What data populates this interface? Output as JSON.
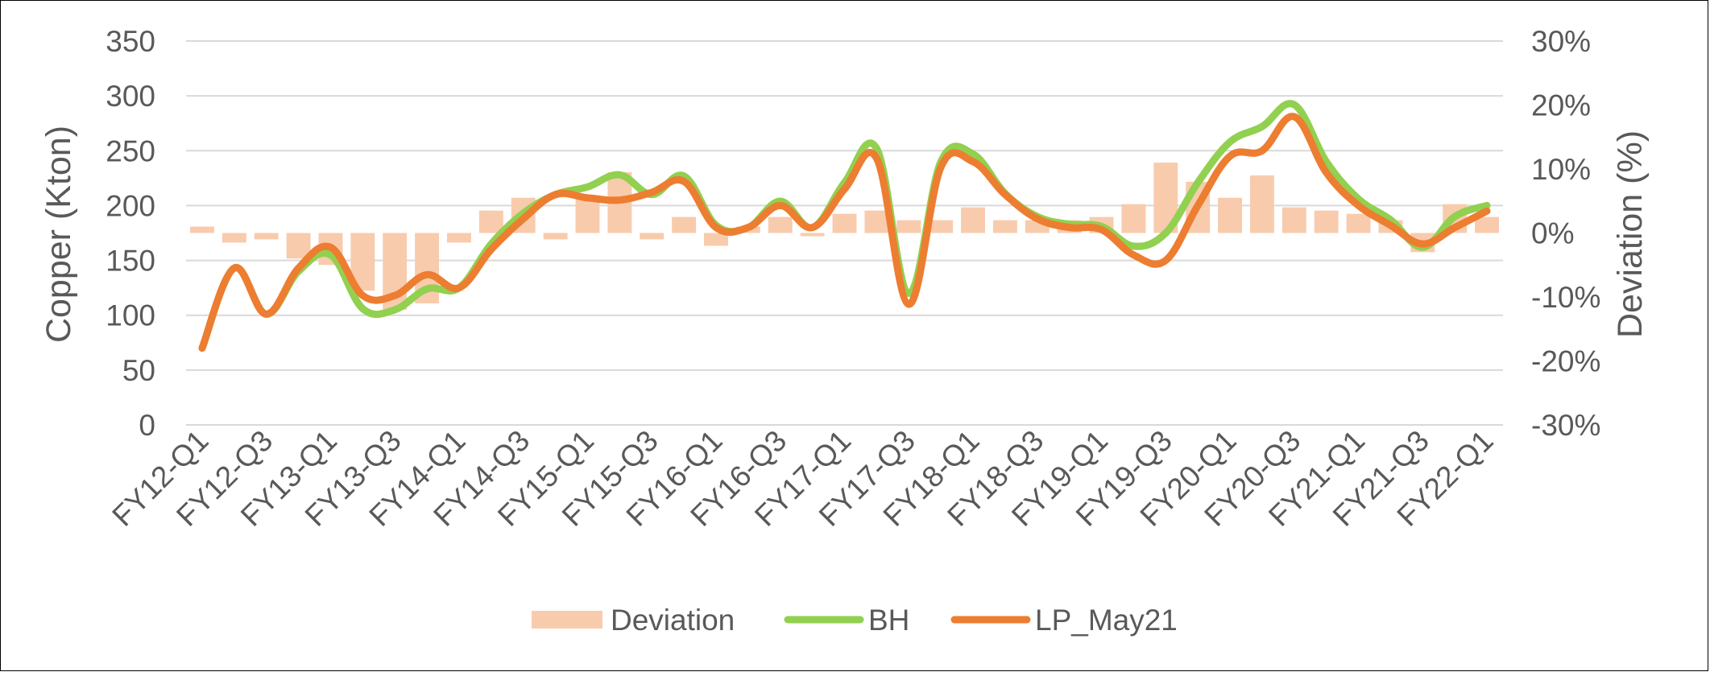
{
  "chart_data": {
    "type": "bar+line",
    "title": "",
    "categories": [
      "FY12-Q1",
      "FY12-Q2",
      "FY12-Q3",
      "FY12-Q4",
      "FY13-Q1",
      "FY13-Q2",
      "FY13-Q3",
      "FY13-Q4",
      "FY14-Q1",
      "FY14-Q2",
      "FY14-Q3",
      "FY14-Q4",
      "FY15-Q1",
      "FY15-Q2",
      "FY15-Q3",
      "FY15-Q4",
      "FY16-Q1",
      "FY16-Q2",
      "FY16-Q3",
      "FY16-Q4",
      "FY17-Q1",
      "FY17-Q2",
      "FY17-Q3",
      "FY17-Q4",
      "FY18-Q1",
      "FY18-Q2",
      "FY18-Q3",
      "FY18-Q4",
      "FY19-Q1",
      "FY19-Q2",
      "FY19-Q3",
      "FY19-Q4",
      "FY20-Q1",
      "FY20-Q2",
      "FY20-Q3",
      "FY20-Q4",
      "FY21-Q1",
      "FY21-Q2",
      "FY21-Q3",
      "FY21-Q4",
      "FY22-Q1"
    ],
    "x_tick_labels": [
      "FY12-Q1",
      "FY12-Q3",
      "FY13-Q1",
      "FY13-Q3",
      "FY14-Q1",
      "FY14-Q3",
      "FY15-Q1",
      "FY15-Q3",
      "FY16-Q1",
      "FY16-Q3",
      "FY17-Q1",
      "FY17-Q3",
      "FY18-Q1",
      "FY18-Q3",
      "FY19-Q1",
      "FY19-Q3",
      "FY20-Q1",
      "FY20-Q3",
      "FY21-Q1",
      "FY21-Q3",
      "FY22-Q1"
    ],
    "y_left": {
      "label": "Copper (Kton)",
      "range": [
        0,
        350
      ],
      "ticks": [
        "0",
        "50",
        "100",
        "150",
        "200",
        "250",
        "300",
        "350"
      ]
    },
    "y_right": {
      "label": "Deviation (%)",
      "range": [
        -30,
        30
      ],
      "ticks": [
        "-30%",
        "-20%",
        "-10%",
        "0%",
        "10%",
        "20%",
        "30%"
      ]
    },
    "grid": "horizontal",
    "legend_position": "bottom",
    "series": [
      {
        "name": "Deviation",
        "kind": "bar",
        "axis": "right",
        "color": "#f8cbad",
        "values": [
          1,
          -1.5,
          -1,
          -4,
          -5,
          -9,
          -12,
          -11,
          -1.5,
          3.5,
          5.5,
          -1,
          5.5,
          9.5,
          -1,
          2.5,
          -2,
          1,
          2.5,
          -0.5,
          3,
          3.5,
          2,
          2,
          4,
          2,
          2,
          2,
          2.5,
          4.5,
          11,
          8,
          5.5,
          9,
          4,
          3.5,
          3,
          2,
          -3,
          4.5,
          2.5
        ]
      },
      {
        "name": "BH",
        "kind": "line",
        "axis": "left",
        "color": "#92d050",
        "values": [
          70,
          143,
          101,
          140,
          155,
          106,
          105,
          124,
          125,
          165,
          193,
          210,
          217,
          228,
          210,
          227,
          182,
          180,
          204,
          180,
          221,
          252,
          120,
          240,
          247,
          211,
          190,
          183,
          181,
          163,
          175,
          221,
          258,
          272,
          292,
          240,
          206,
          187,
          162,
          190,
          200
        ]
      },
      {
        "name": "LP_May21",
        "kind": "line",
        "axis": "left",
        "color": "#ed7d31",
        "values": [
          70,
          143,
          101,
          143,
          162,
          118,
          118,
          137,
          125,
          160,
          188,
          210,
          207,
          205,
          212,
          222,
          180,
          180,
          200,
          180,
          215,
          243,
          110,
          235,
          240,
          210,
          188,
          180,
          178,
          155,
          150,
          200,
          245,
          250,
          281,
          230,
          200,
          182,
          165,
          180,
          195
        ]
      }
    ]
  }
}
